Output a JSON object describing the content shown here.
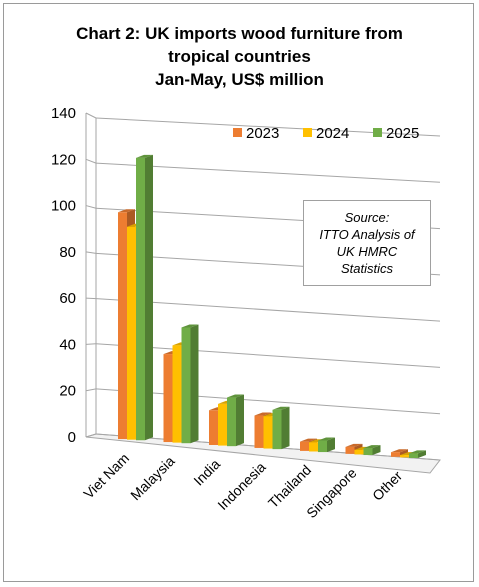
{
  "title": {
    "line1": "Chart 2: UK imports wood furniture from",
    "line2": "tropical countries",
    "line3": "Jan-May, US$ million"
  },
  "source": {
    "line1": "Source:",
    "line2": "ITTO Analysis of",
    "line3": "UK HMRC",
    "line4": "Statistics"
  },
  "chart_data": {
    "type": "bar",
    "title": "Chart 2: UK imports wood furniture from tropical countries Jan-May, US$ million",
    "categories": [
      "Viet Nam",
      "Malaysia",
      "India",
      "Indonesia",
      "Thailand",
      "Singapore",
      "Other"
    ],
    "series": [
      {
        "name": "2023",
        "color": "#ED7D31",
        "values": [
          98,
          38,
          15,
          14,
          4,
          3,
          2
        ]
      },
      {
        "name": "2024",
        "color": "#FFC000",
        "values": [
          92,
          42,
          18,
          14,
          4,
          2,
          1
        ]
      },
      {
        "name": "2025",
        "color": "#70AD47",
        "values": [
          122,
          50,
          21,
          17,
          5,
          3,
          2
        ]
      }
    ],
    "y_ticks": [
      "0",
      "20",
      "40",
      "60",
      "80",
      "100",
      "120",
      "140"
    ],
    "ylim": [
      0,
      140
    ],
    "grid": true,
    "legend_position": "top-right",
    "style": "3d-clustered-column"
  }
}
